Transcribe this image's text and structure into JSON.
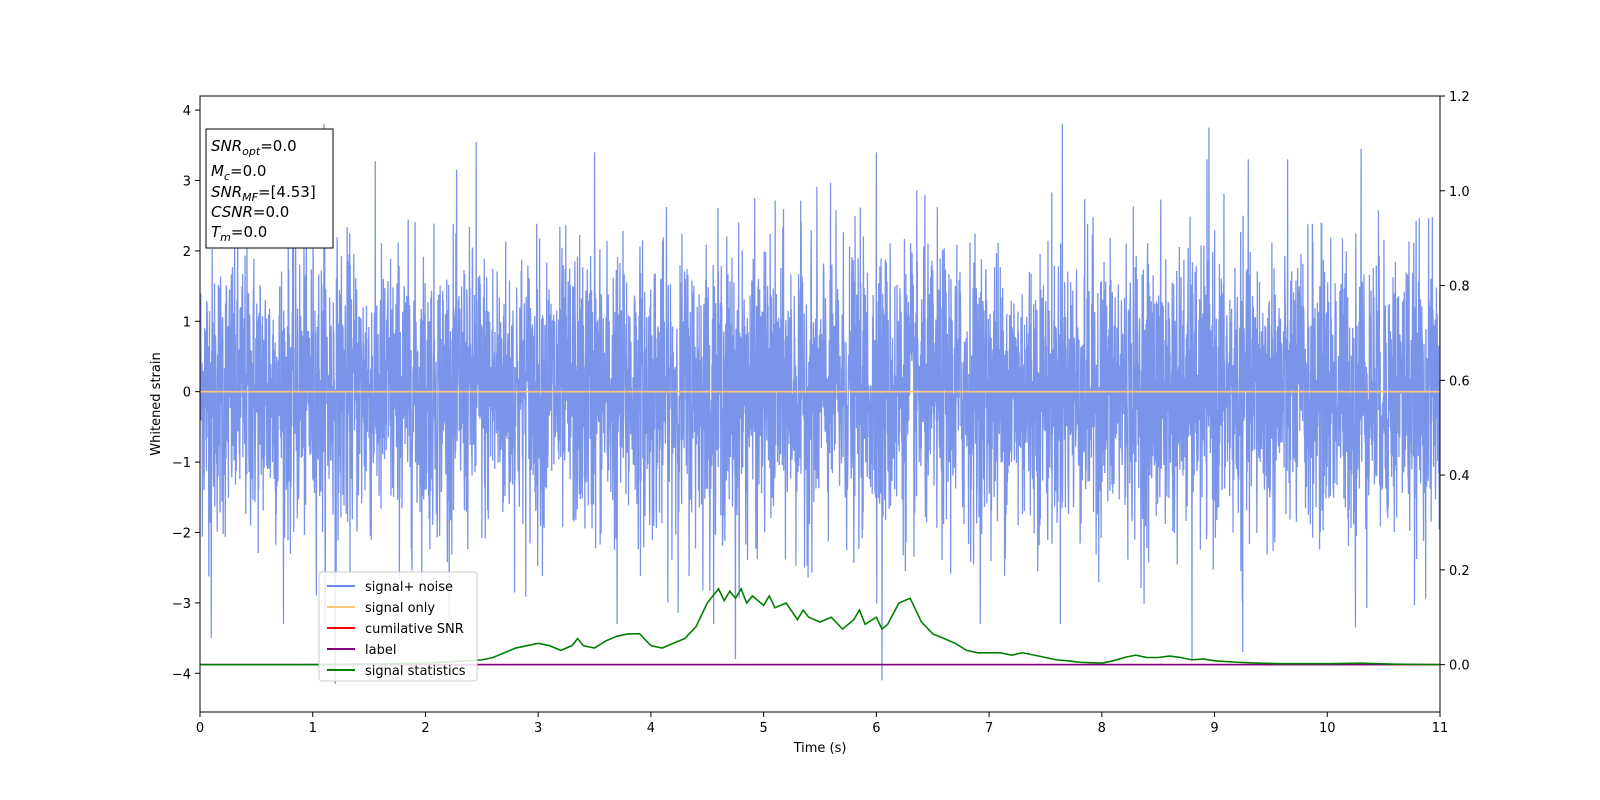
{
  "chart_data": {
    "type": "line",
    "title": "",
    "xlabel": "Time (s)",
    "ylabel": "Whitened strain",
    "y2label": "",
    "xlim": [
      0,
      11
    ],
    "ylim": [
      -4.55,
      4.2
    ],
    "y2lim": [
      -0.1,
      1.2
    ],
    "x_ticks": [
      0,
      1,
      2,
      3,
      4,
      5,
      6,
      7,
      8,
      9,
      10,
      11
    ],
    "y_ticks": [
      -4,
      -3,
      -2,
      -1,
      0,
      1,
      2,
      3,
      4
    ],
    "y_tick_labels": [
      "−4",
      "−3",
      "−2",
      "−1",
      "0",
      "1",
      "2",
      "3",
      "4"
    ],
    "y2_ticks": [
      0.0,
      0.2,
      0.4,
      0.6,
      0.8,
      1.0,
      1.2
    ],
    "y2_tick_labels": [
      "0.0",
      "0.2",
      "0.4",
      "0.6",
      "0.8",
      "1.0",
      "1.2"
    ],
    "grid": false,
    "legend_position": "lower-left",
    "series": [
      {
        "name": "signal+ noise",
        "color": "#6a88e6",
        "axis": "left",
        "style": "noise",
        "noise_std": 1.0,
        "notable_peaks": [
          {
            "x": 1.1,
            "y": 3.8
          },
          {
            "x": 2.45,
            "y": 3.55
          },
          {
            "x": 3.5,
            "y": 3.4
          },
          {
            "x": 6.0,
            "y": 3.4
          },
          {
            "x": 7.65,
            "y": 3.8
          },
          {
            "x": 8.95,
            "y": 3.75
          },
          {
            "x": 10.3,
            "y": 3.45
          },
          {
            "x": 0.1,
            "y": -3.5
          },
          {
            "x": 1.2,
            "y": -4.15
          },
          {
            "x": 3.7,
            "y": -3.3
          },
          {
            "x": 4.75,
            "y": -3.8
          },
          {
            "x": 6.05,
            "y": -4.1
          },
          {
            "x": 8.8,
            "y": -3.8
          },
          {
            "x": 9.25,
            "y": -3.7
          },
          {
            "x": 10.25,
            "y": -3.35
          }
        ]
      },
      {
        "name": "signal only",
        "color": "#ffc878",
        "axis": "left",
        "x": [
          0,
          11
        ],
        "y": [
          0,
          0
        ]
      },
      {
        "name": "cumilative SNR",
        "color": "#ff0000",
        "axis": "right",
        "x": [
          0,
          11
        ],
        "y": [
          0,
          0
        ]
      },
      {
        "name": "label",
        "color": "#800080",
        "axis": "right",
        "x": [
          0,
          11
        ],
        "y": [
          0,
          0
        ]
      },
      {
        "name": "signal statistics",
        "color": "#008000",
        "axis": "right",
        "x": [
          0,
          1,
          2,
          2.5,
          2.6,
          2.7,
          2.8,
          2.9,
          3.0,
          3.1,
          3.2,
          3.3,
          3.35,
          3.4,
          3.5,
          3.6,
          3.7,
          3.8,
          3.9,
          4.0,
          4.1,
          4.2,
          4.3,
          4.4,
          4.5,
          4.6,
          4.65,
          4.7,
          4.75,
          4.8,
          4.85,
          4.9,
          5.0,
          5.05,
          5.1,
          5.2,
          5.3,
          5.35,
          5.4,
          5.5,
          5.6,
          5.7,
          5.8,
          5.85,
          5.9,
          6.0,
          6.05,
          6.1,
          6.2,
          6.3,
          6.4,
          6.5,
          6.6,
          6.7,
          6.8,
          6.9,
          7.0,
          7.1,
          7.2,
          7.3,
          7.4,
          7.5,
          7.6,
          7.7,
          7.8,
          7.9,
          8.0,
          8.1,
          8.2,
          8.3,
          8.4,
          8.5,
          8.6,
          8.7,
          8.8,
          8.9,
          9.0,
          9.2,
          9.4,
          9.6,
          9.8,
          10.0,
          10.3,
          10.6,
          11.0
        ],
        "y": [
          0.0,
          0.0,
          0.003,
          0.01,
          0.015,
          0.025,
          0.035,
          0.04,
          0.045,
          0.04,
          0.03,
          0.04,
          0.055,
          0.04,
          0.035,
          0.05,
          0.06,
          0.065,
          0.065,
          0.04,
          0.035,
          0.045,
          0.055,
          0.08,
          0.13,
          0.16,
          0.135,
          0.155,
          0.14,
          0.16,
          0.13,
          0.145,
          0.125,
          0.145,
          0.12,
          0.13,
          0.095,
          0.115,
          0.1,
          0.09,
          0.1,
          0.075,
          0.095,
          0.115,
          0.085,
          0.1,
          0.075,
          0.085,
          0.13,
          0.14,
          0.09,
          0.065,
          0.055,
          0.045,
          0.03,
          0.025,
          0.025,
          0.025,
          0.02,
          0.025,
          0.02,
          0.015,
          0.01,
          0.008,
          0.005,
          0.004,
          0.003,
          0.008,
          0.015,
          0.02,
          0.015,
          0.015,
          0.018,
          0.015,
          0.01,
          0.012,
          0.008,
          0.005,
          0.003,
          0.002,
          0.002,
          0.002,
          0.003,
          0.001,
          0.0
        ]
      }
    ],
    "info_box": {
      "lines": [
        {
          "main": "SNR",
          "sub": "opt",
          "value": "=0.0"
        },
        {
          "main": "M",
          "sub": "c",
          "value": "=0.0"
        },
        {
          "main": "SNR",
          "sub": "MF",
          "value": "=[4.53]"
        },
        {
          "main": "CSNR",
          "sub": "",
          "value": "=0.0"
        },
        {
          "main": "T",
          "sub": "m",
          "value": "=0.0"
        }
      ]
    }
  }
}
